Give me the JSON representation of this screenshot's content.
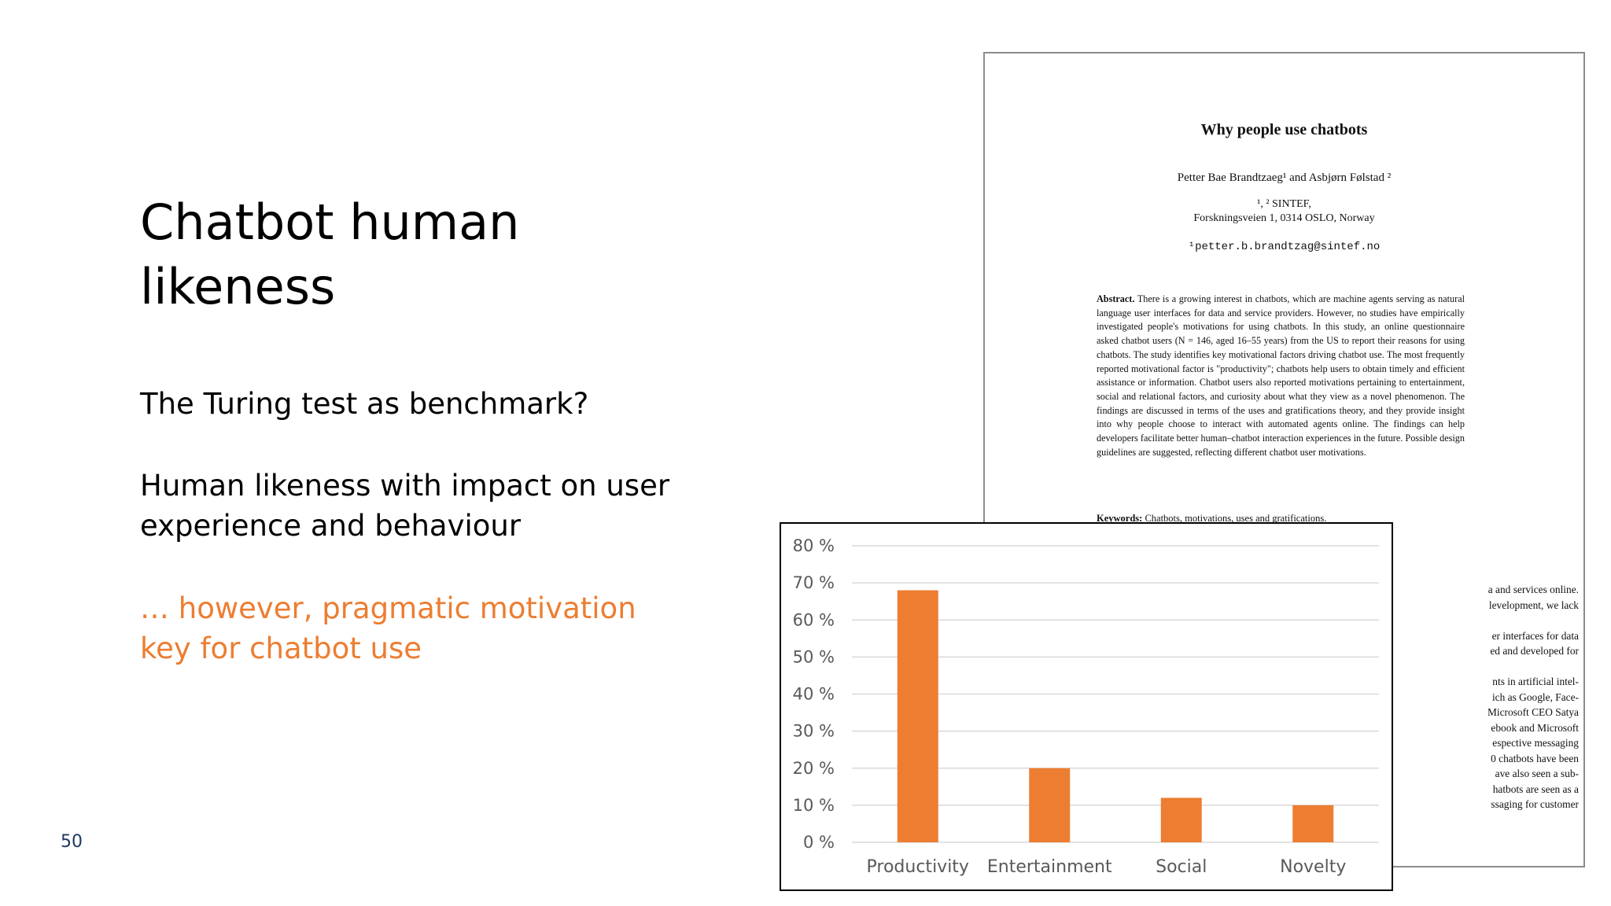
{
  "slide": {
    "title": "Chatbot human likeness",
    "point1": "The Turing test as benchmark?",
    "point2": "Human likeness with impact on user experience and behaviour",
    "point3": "… however, pragmatic motivation key for chatbot use",
    "page_number": "50",
    "accent_color": "#ED7D31"
  },
  "paper": {
    "title": "Why people use chatbots",
    "authors": "Petter Bae Brandtzaeg¹ and Asbjørn Følstad ²",
    "affiliation": "¹, ² SINTEF,",
    "address": "Forskningsveien 1, 0314 OSLO, Norway",
    "email": "¹petter.b.brandtzag@sintef.no",
    "abstract_label": "Abstract.",
    "abstract_text": "There is a growing interest in chatbots, which are machine agents serving as natural language user interfaces for data and service providers. However, no studies have empirically investigated people's motivations for using chatbots. In this study, an online questionnaire asked chatbot users (N = 146, aged 16–55 years) from the US to report their reasons for using chatbots. The study identifies key motivational factors driving chatbot use. The most frequently reported motivational factor is \"productivity\"; chatbots help users to obtain timely and efficient assistance or information. Chatbot users also reported motivations pertaining to entertainment, social and relational factors, and curiosity about what they view as a novel phenomenon. The findings are discussed in terms of the uses and gratifications theory, and they provide insight into why people choose to interact with automated agents online. The findings can help developers facilitate better human–chatbot interaction experiences in the future. Possible design guidelines are suggested, reflecting different chatbot user motivations.",
    "keywords_label": "Keywords:",
    "keywords_text": "Chatbots, motivations, uses and gratifications.",
    "column_text": "a and services online.\nlevelopment, we lack\n\ner interfaces for data\ned and developed for\n\nnts in artificial intel-\nich as Google, Face-\nMicrosoft CEO Satya\nebook and Microsoft\nespective messaging\n0 chatbots have been\nave also seen a sub-\nhatbots are seen as a\nssaging for customer"
  },
  "chart_data": {
    "type": "bar",
    "categories": [
      "Productivity",
      "Entertainment",
      "Social",
      "Novelty"
    ],
    "values": [
      68,
      20,
      12,
      10
    ],
    "y_unit": "%",
    "ylim": [
      0,
      80
    ],
    "y_ticks": [
      0,
      10,
      20,
      30,
      40,
      50,
      60,
      70,
      80
    ],
    "y_tick_labels": [
      "0 %",
      "10 %",
      "20 %",
      "30 %",
      "40 %",
      "50 %",
      "60 %",
      "70 %",
      "80 %"
    ],
    "title": "",
    "xlabel": "",
    "ylabel": "",
    "grid": true,
    "legend": "none",
    "bar_color": "#ED7D31",
    "grid_color": "#D9D9D9"
  }
}
